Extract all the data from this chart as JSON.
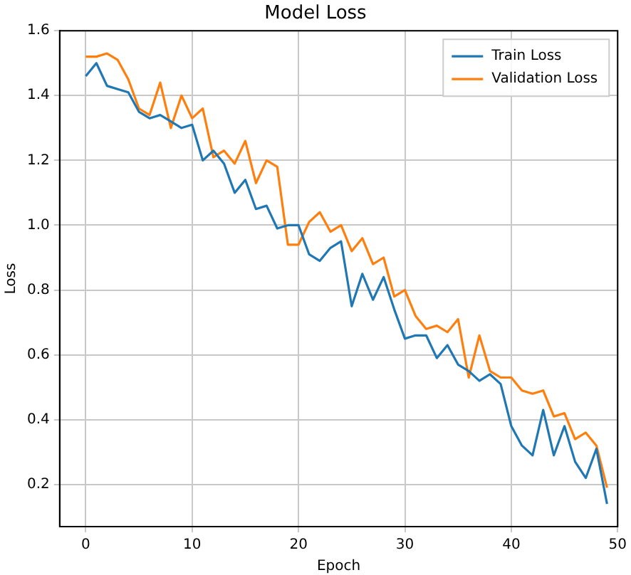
{
  "chart_data": {
    "type": "line",
    "title": "Model Loss",
    "xlabel": "Epoch",
    "ylabel": "Loss",
    "x": [
      0,
      1,
      2,
      3,
      4,
      5,
      6,
      7,
      8,
      9,
      10,
      11,
      12,
      13,
      14,
      15,
      16,
      17,
      18,
      19,
      20,
      21,
      22,
      23,
      24,
      25,
      26,
      27,
      28,
      29,
      30,
      31,
      32,
      33,
      34,
      35,
      36,
      37,
      38,
      39,
      40,
      41,
      42,
      43,
      44,
      45,
      46,
      47,
      48,
      49
    ],
    "series": [
      {
        "name": "Train Loss",
        "color": "#1f77b4",
        "values": [
          1.46,
          1.5,
          1.43,
          1.42,
          1.41,
          1.35,
          1.33,
          1.34,
          1.32,
          1.3,
          1.31,
          1.2,
          1.23,
          1.19,
          1.1,
          1.14,
          1.05,
          1.06,
          0.99,
          1.0,
          1.0,
          0.91,
          0.89,
          0.93,
          0.95,
          0.75,
          0.85,
          0.77,
          0.84,
          0.74,
          0.65,
          0.66,
          0.66,
          0.59,
          0.63,
          0.57,
          0.55,
          0.52,
          0.54,
          0.51,
          0.38,
          0.32,
          0.29,
          0.43,
          0.29,
          0.38,
          0.27,
          0.22,
          0.31,
          0.14
        ]
      },
      {
        "name": "Validation Loss",
        "color": "#ff7f0e",
        "values": [
          1.52,
          1.52,
          1.53,
          1.51,
          1.45,
          1.36,
          1.34,
          1.44,
          1.3,
          1.4,
          1.33,
          1.36,
          1.21,
          1.23,
          1.19,
          1.26,
          1.13,
          1.2,
          1.18,
          0.94,
          0.94,
          1.01,
          1.04,
          0.98,
          1.0,
          0.92,
          0.96,
          0.88,
          0.9,
          0.78,
          0.8,
          0.72,
          0.68,
          0.69,
          0.67,
          0.71,
          0.53,
          0.66,
          0.55,
          0.53,
          0.53,
          0.49,
          0.48,
          0.49,
          0.41,
          0.42,
          0.34,
          0.36,
          0.32,
          0.19
        ]
      }
    ],
    "xlim": [
      -2.45,
      50
    ],
    "xticks": [
      0,
      10,
      20,
      30,
      40,
      50
    ],
    "ylim": [
      0.07,
      1.6
    ],
    "yticks": [
      {
        "value": 0.2,
        "label": "0.2"
      },
      {
        "value": 0.4,
        "label": "0.4"
      },
      {
        "value": 0.6,
        "label": "0.6"
      },
      {
        "value": 0.8,
        "label": "0.8"
      },
      {
        "value": 1,
        "label": "1.0"
      },
      {
        "value": 1.2,
        "label": "1.2"
      },
      {
        "value": 1.4,
        "label": "1.4"
      },
      {
        "value": 1.6,
        "label": "1.6"
      }
    ],
    "grid": true,
    "legend": "top right",
    "marker": "none",
    "line_style": "solid"
  }
}
